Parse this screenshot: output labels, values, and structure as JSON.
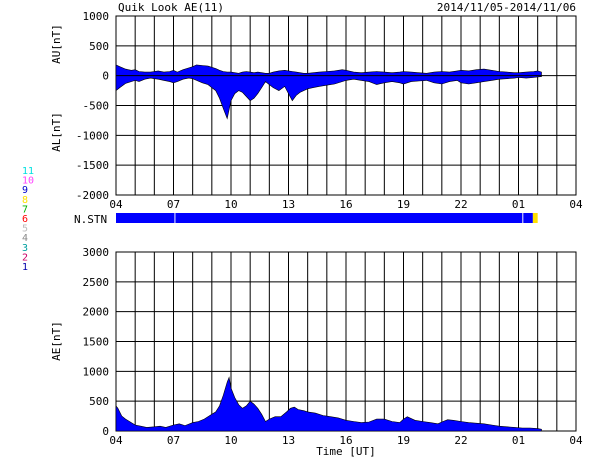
{
  "header": {
    "title": "Quik Look AE(11)",
    "date_range": "2014/11/05-2014/11/06"
  },
  "station_legend": {
    "items": [
      {
        "label": "11",
        "color": "#00e0e0"
      },
      {
        "label": "10",
        "color": "#ff40ff"
      },
      {
        "label": "9",
        "color": "#0000cc"
      },
      {
        "label": "8",
        "color": "#ffe000"
      },
      {
        "label": "7",
        "color": "#00b000"
      },
      {
        "label": "6",
        "color": "#ff0000"
      },
      {
        "label": "5",
        "color": "#bbbbbb"
      },
      {
        "label": "4",
        "color": "#888888"
      },
      {
        "label": "3",
        "color": "#00a0a0"
      },
      {
        "label": "2",
        "color": "#cc0066"
      },
      {
        "label": "1",
        "color": "#0000aa"
      }
    ]
  },
  "chart_data": [
    {
      "id": "au_al",
      "type": "area",
      "ylabel_upper": "AU[nT]",
      "ylabel_lower": "AL[nT]",
      "ylim": [
        -2000,
        1000
      ],
      "yticks": [
        1000,
        500,
        0,
        -500,
        -1000,
        -1500,
        -2000
      ],
      "x_tick_labels": [
        "04",
        "07",
        "10",
        "13",
        "16",
        "19",
        "22",
        "01",
        "04"
      ],
      "x_range_hours": [
        4,
        28
      ],
      "grid": true,
      "fill_color": "#0000ff",
      "x_hours": [
        4.0,
        4.2,
        4.5,
        4.8,
        5.0,
        5.2,
        5.5,
        5.8,
        6.0,
        6.2,
        6.5,
        6.8,
        7.0,
        7.2,
        7.5,
        7.8,
        8.0,
        8.2,
        8.5,
        8.8,
        9.0,
        9.2,
        9.4,
        9.6,
        9.8,
        10.0,
        10.2,
        10.4,
        10.6,
        10.8,
        11.0,
        11.2,
        11.4,
        11.6,
        11.8,
        12.0,
        12.2,
        12.5,
        12.8,
        13.0,
        13.2,
        13.4,
        13.6,
        13.8,
        14.0,
        14.3,
        14.6,
        15.0,
        15.4,
        15.8,
        16.0,
        16.4,
        16.8,
        17.2,
        17.6,
        18.0,
        18.4,
        18.8,
        19.0,
        19.4,
        19.8,
        20.2,
        20.6,
        21.0,
        21.4,
        21.8,
        22.0,
        22.4,
        22.8,
        23.2,
        23.6,
        24.0,
        24.4,
        24.8,
        25.0,
        25.4,
        25.8,
        26.0,
        26.2
      ],
      "au_values": [
        180,
        150,
        110,
        90,
        100,
        70,
        60,
        60,
        70,
        80,
        60,
        70,
        90,
        60,
        100,
        130,
        150,
        180,
        170,
        160,
        140,
        120,
        90,
        70,
        60,
        60,
        50,
        40,
        60,
        70,
        60,
        50,
        60,
        50,
        40,
        40,
        60,
        80,
        90,
        80,
        70,
        60,
        50,
        40,
        40,
        50,
        60,
        70,
        80,
        100,
        90,
        60,
        50,
        60,
        70,
        60,
        50,
        60,
        70,
        60,
        50,
        40,
        60,
        70,
        60,
        80,
        90,
        80,
        100,
        110,
        90,
        70,
        60,
        50,
        50,
        60,
        70,
        80,
        60
      ],
      "al_values": [
        -250,
        -200,
        -130,
        -100,
        -80,
        -100,
        -60,
        -40,
        -50,
        -60,
        -80,
        -100,
        -120,
        -100,
        -60,
        -40,
        -50,
        -80,
        -120,
        -150,
        -200,
        -250,
        -380,
        -550,
        -720,
        -420,
        -300,
        -250,
        -280,
        -350,
        -420,
        -380,
        -300,
        -200,
        -100,
        -150,
        -200,
        -250,
        -180,
        -300,
        -420,
        -330,
        -280,
        -250,
        -220,
        -200,
        -180,
        -160,
        -140,
        -100,
        -80,
        -60,
        -80,
        -100,
        -150,
        -120,
        -100,
        -120,
        -140,
        -100,
        -90,
        -80,
        -120,
        -140,
        -100,
        -80,
        -120,
        -140,
        -120,
        -100,
        -80,
        -60,
        -50,
        -40,
        -30,
        -40,
        -30,
        -20,
        -15
      ]
    },
    {
      "id": "nstn",
      "type": "bar",
      "label": "N.STN",
      "segments": [
        {
          "from": 4.0,
          "to": 7.05,
          "station": "11"
        },
        {
          "from": 7.1,
          "to": 25.2,
          "station": "11"
        },
        {
          "from": 25.25,
          "to": 25.75,
          "station": "11"
        },
        {
          "from": 25.75,
          "to": 26.0,
          "station": "8"
        }
      ]
    },
    {
      "id": "ae",
      "type": "area",
      "ylabel": "AE[nT]",
      "xlabel": "Time [UT]",
      "ylim": [
        0,
        3000
      ],
      "yticks": [
        3000,
        2500,
        2000,
        1500,
        1000,
        500,
        0
      ],
      "x_tick_labels": [
        "04",
        "07",
        "10",
        "13",
        "16",
        "19",
        "22",
        "01",
        "04"
      ],
      "x_range_hours": [
        4,
        28
      ],
      "grid": true,
      "fill_color": "#0000ff",
      "x_hours": [
        4.0,
        4.1,
        4.3,
        4.5,
        4.8,
        5.0,
        5.3,
        5.6,
        6.0,
        6.3,
        6.6,
        7.0,
        7.3,
        7.6,
        8.0,
        8.3,
        8.6,
        9.0,
        9.2,
        9.4,
        9.6,
        9.8,
        9.9,
        10.0,
        10.2,
        10.4,
        10.6,
        10.8,
        11.0,
        11.2,
        11.4,
        11.6,
        11.8,
        12.0,
        12.3,
        12.6,
        12.9,
        13.1,
        13.3,
        13.5,
        13.8,
        14.0,
        14.4,
        14.8,
        15.2,
        15.6,
        16.0,
        16.4,
        16.8,
        17.2,
        17.6,
        18.0,
        18.4,
        18.8,
        19.0,
        19.2,
        19.6,
        20.0,
        20.4,
        20.8,
        21.0,
        21.3,
        21.6,
        22.0,
        22.4,
        22.8,
        23.2,
        23.6,
        24.0,
        24.4,
        24.8,
        25.2,
        25.6,
        26.0,
        26.2
      ],
      "values": [
        420,
        380,
        250,
        200,
        140,
        100,
        80,
        60,
        70,
        80,
        60,
        100,
        120,
        90,
        140,
        160,
        200,
        280,
        320,
        420,
        600,
        820,
        900,
        720,
        560,
        440,
        380,
        420,
        500,
        450,
        380,
        280,
        160,
        200,
        240,
        240,
        320,
        380,
        400,
        360,
        340,
        320,
        300,
        260,
        240,
        220,
        180,
        160,
        140,
        150,
        200,
        200,
        160,
        140,
        200,
        240,
        180,
        160,
        140,
        120,
        150,
        190,
        180,
        160,
        140,
        130,
        120,
        100,
        80,
        70,
        60,
        50,
        50,
        40,
        30
      ]
    }
  ]
}
